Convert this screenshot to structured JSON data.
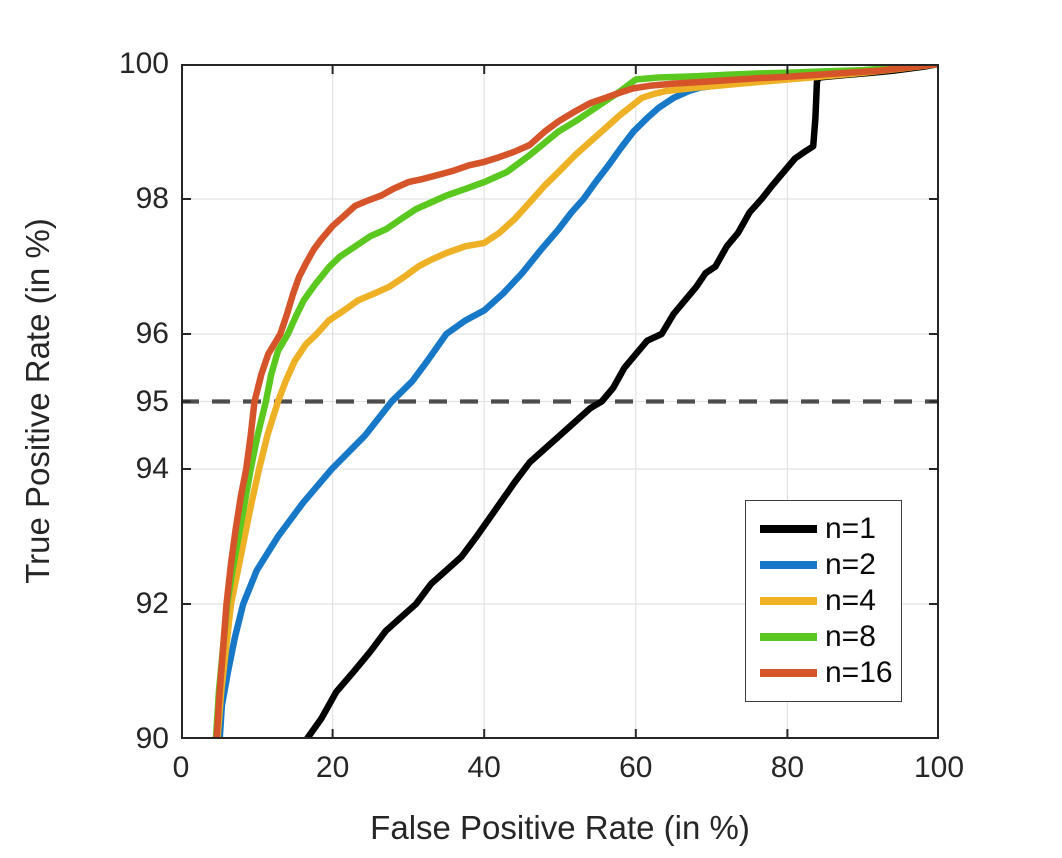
{
  "figure": {
    "background": "#ffffff",
    "axis_color": "#262626",
    "grid_color": "#e2e2e2",
    "reference_line_color": "#4d4d4d"
  },
  "axes": {
    "xlabel": "False Positive Rate (in %)",
    "ylabel": "True Positive Rate (in %)",
    "x_tick_labels": [
      "0",
      "20",
      "40",
      "60",
      "80",
      "100"
    ],
    "y_tick_labels": [
      "90",
      "92",
      "94",
      "95",
      "96",
      "98",
      "100"
    ]
  },
  "legend": {
    "items": [
      {
        "label": "n=1",
        "color": "#000000"
      },
      {
        "label": "n=2",
        "color": "#1878c8"
      },
      {
        "label": "n=4",
        "color": "#eeb126"
      },
      {
        "label": "n=8",
        "color": "#5ac81e"
      },
      {
        "label": "n=16",
        "color": "#d5542a"
      }
    ]
  },
  "chart_data": {
    "type": "line",
    "title": "",
    "xlabel": "False Positive Rate (in %)",
    "ylabel": "True Positive Rate (in %)",
    "xlim": [
      0,
      100
    ],
    "ylim": [
      90,
      100
    ],
    "xticks": [
      0,
      20,
      40,
      60,
      80,
      100
    ],
    "yticks": [
      90,
      92,
      94,
      95,
      96,
      98,
      100
    ],
    "x_gridlines": [
      20,
      40,
      60,
      80
    ],
    "y_gridlines": [
      92,
      94,
      95,
      96,
      98
    ],
    "grid": true,
    "legend_position": "inside lower right",
    "reference_line": {
      "y": 95,
      "style": "dashed",
      "color": "#4d4d4d",
      "width": 4.3,
      "dash": "18 13"
    },
    "series": [
      {
        "name": "n=1",
        "color": "#000000",
        "width": 6.5,
        "points": [
          [
            16.6,
            90
          ],
          [
            18.5,
            90.3
          ],
          [
            20.5,
            90.7
          ],
          [
            22.8,
            91
          ],
          [
            25,
            91.3
          ],
          [
            27,
            91.6
          ],
          [
            29,
            91.8
          ],
          [
            31,
            92
          ],
          [
            33,
            92.3
          ],
          [
            35,
            92.5
          ],
          [
            37,
            92.7
          ],
          [
            39,
            93
          ],
          [
            41.5,
            93.4
          ],
          [
            44,
            93.8
          ],
          [
            46,
            94.1
          ],
          [
            48,
            94.3
          ],
          [
            50,
            94.5
          ],
          [
            52,
            94.7
          ],
          [
            54,
            94.9
          ],
          [
            55.5,
            95
          ],
          [
            57,
            95.2
          ],
          [
            58.5,
            95.5
          ],
          [
            60,
            95.7
          ],
          [
            61.5,
            95.9
          ],
          [
            63.4,
            96
          ],
          [
            65,
            96.3
          ],
          [
            66.5,
            96.5
          ],
          [
            68,
            96.7
          ],
          [
            69.2,
            96.9
          ],
          [
            70.5,
            97
          ],
          [
            72,
            97.3
          ],
          [
            73.5,
            97.5
          ],
          [
            75,
            97.8
          ],
          [
            76.6,
            98
          ],
          [
            78,
            98.2
          ],
          [
            79.5,
            98.4
          ],
          [
            81,
            98.6
          ],
          [
            82.3,
            98.7
          ],
          [
            83.4,
            98.78
          ],
          [
            83.7,
            99.2
          ],
          [
            83.9,
            99.75
          ],
          [
            84.2,
            99.8
          ],
          [
            86,
            99.82
          ],
          [
            88,
            99.84
          ],
          [
            90,
            99.86
          ],
          [
            92,
            99.88
          ],
          [
            94,
            99.9
          ],
          [
            96,
            99.93
          ],
          [
            98,
            99.96
          ],
          [
            100,
            100
          ]
        ]
      },
      {
        "name": "n=2",
        "color": "#1878c8",
        "width": 6.5,
        "points": [
          [
            5.1,
            90
          ],
          [
            5.4,
            90.5
          ],
          [
            6.2,
            91
          ],
          [
            7.1,
            91.5
          ],
          [
            8.2,
            92
          ],
          [
            10,
            92.5
          ],
          [
            12.8,
            93
          ],
          [
            16.1,
            93.5
          ],
          [
            19.9,
            94
          ],
          [
            24.3,
            94.5
          ],
          [
            27.8,
            95
          ],
          [
            30.5,
            95.3
          ],
          [
            32.5,
            95.6
          ],
          [
            35,
            96
          ],
          [
            37.5,
            96.2
          ],
          [
            40,
            96.35
          ],
          [
            42.5,
            96.6
          ],
          [
            45,
            96.9
          ],
          [
            47.5,
            97.25
          ],
          [
            49.8,
            97.55
          ],
          [
            51.5,
            97.8
          ],
          [
            53.1,
            98
          ],
          [
            54.7,
            98.25
          ],
          [
            56.4,
            98.5
          ],
          [
            58,
            98.75
          ],
          [
            59.7,
            99
          ],
          [
            61.5,
            99.2
          ],
          [
            63,
            99.35
          ],
          [
            65,
            99.5
          ],
          [
            67,
            99.6
          ],
          [
            68.5,
            99.65
          ],
          [
            72,
            99.7
          ],
          [
            76,
            99.74
          ],
          [
            80,
            99.78
          ],
          [
            84,
            99.82
          ],
          [
            87,
            99.87
          ],
          [
            90,
            99.9
          ],
          [
            94,
            99.94
          ],
          [
            97,
            99.97
          ],
          [
            100,
            100
          ]
        ]
      },
      {
        "name": "n=4",
        "color": "#eeb126",
        "width": 6.5,
        "points": [
          [
            4.8,
            90
          ],
          [
            5.3,
            90.7
          ],
          [
            5.9,
            91.3
          ],
          [
            6.6,
            92
          ],
          [
            7.5,
            92.5
          ],
          [
            8.4,
            93
          ],
          [
            9.3,
            93.5
          ],
          [
            10.3,
            94
          ],
          [
            11.4,
            94.5
          ],
          [
            12.8,
            95
          ],
          [
            13.8,
            95.3
          ],
          [
            15,
            95.6
          ],
          [
            16.5,
            95.85
          ],
          [
            17.9,
            96
          ],
          [
            19.5,
            96.2
          ],
          [
            21.5,
            96.35
          ],
          [
            23.4,
            96.5
          ],
          [
            25.5,
            96.6
          ],
          [
            27.5,
            96.7
          ],
          [
            29.5,
            96.85
          ],
          [
            31.3,
            97
          ],
          [
            33,
            97.1
          ],
          [
            35,
            97.2
          ],
          [
            37.5,
            97.3
          ],
          [
            40,
            97.35
          ],
          [
            42,
            97.5
          ],
          [
            44,
            97.7
          ],
          [
            46,
            97.95
          ],
          [
            48,
            98.2
          ],
          [
            49.8,
            98.4
          ],
          [
            52,
            98.65
          ],
          [
            54,
            98.85
          ],
          [
            56,
            99.05
          ],
          [
            58,
            99.25
          ],
          [
            60.8,
            99.5
          ],
          [
            62.5,
            99.56
          ],
          [
            64,
            99.6
          ],
          [
            68,
            99.65
          ],
          [
            72,
            99.69
          ],
          [
            76,
            99.73
          ],
          [
            80,
            99.77
          ],
          [
            85,
            99.82
          ],
          [
            90,
            99.87
          ],
          [
            95,
            99.93
          ],
          [
            100,
            100
          ]
        ]
      },
      {
        "name": "n=8",
        "color": "#5ac81e",
        "width": 6.5,
        "points": [
          [
            4.6,
            90
          ],
          [
            5,
            90.7
          ],
          [
            5.5,
            91.3
          ],
          [
            6.1,
            92
          ],
          [
            6.8,
            92.5
          ],
          [
            7.6,
            93
          ],
          [
            8.4,
            93.5
          ],
          [
            9.2,
            94
          ],
          [
            10.1,
            94.5
          ],
          [
            11.2,
            95
          ],
          [
            11.9,
            95.4
          ],
          [
            12.8,
            95.75
          ],
          [
            14.1,
            96
          ],
          [
            15.1,
            96.25
          ],
          [
            16.2,
            96.5
          ],
          [
            17.8,
            96.75
          ],
          [
            19.6,
            97
          ],
          [
            21,
            97.15
          ],
          [
            23,
            97.3
          ],
          [
            25,
            97.45
          ],
          [
            27,
            97.55
          ],
          [
            29,
            97.7
          ],
          [
            31,
            97.85
          ],
          [
            33,
            97.95
          ],
          [
            35,
            98.05
          ],
          [
            37.5,
            98.15
          ],
          [
            40,
            98.25
          ],
          [
            43,
            98.4
          ],
          [
            46,
            98.65
          ],
          [
            49.8,
            99
          ],
          [
            52,
            99.15
          ],
          [
            54,
            99.3
          ],
          [
            56,
            99.45
          ],
          [
            58,
            99.6
          ],
          [
            60,
            99.77
          ],
          [
            63,
            99.8
          ],
          [
            68,
            99.82
          ],
          [
            72,
            99.84
          ],
          [
            76,
            99.86
          ],
          [
            80,
            99.87
          ],
          [
            85,
            99.89
          ],
          [
            90,
            99.91
          ],
          [
            95,
            99.95
          ],
          [
            100,
            100
          ]
        ]
      },
      {
        "name": "n=16",
        "color": "#d5542a",
        "width": 6.5,
        "points": [
          [
            4.7,
            90
          ],
          [
            5.1,
            90.7
          ],
          [
            5.6,
            91.4
          ],
          [
            6,
            92
          ],
          [
            6.6,
            92.6
          ],
          [
            7.2,
            93.1
          ],
          [
            7.9,
            93.6
          ],
          [
            8.6,
            94
          ],
          [
            9.2,
            94.5
          ],
          [
            9.7,
            95
          ],
          [
            10.6,
            95.4
          ],
          [
            11.5,
            95.7
          ],
          [
            13.1,
            96
          ],
          [
            14,
            96.3
          ],
          [
            14.8,
            96.6
          ],
          [
            15.6,
            96.85
          ],
          [
            16.5,
            97.05
          ],
          [
            17.5,
            97.25
          ],
          [
            18.5,
            97.4
          ],
          [
            20,
            97.6
          ],
          [
            21.5,
            97.75
          ],
          [
            23,
            97.9
          ],
          [
            24.5,
            97.97
          ],
          [
            26.4,
            98.05
          ],
          [
            28,
            98.15
          ],
          [
            30,
            98.25
          ],
          [
            32,
            98.3
          ],
          [
            34,
            98.36
          ],
          [
            36,
            98.42
          ],
          [
            38,
            98.5
          ],
          [
            40,
            98.55
          ],
          [
            42,
            98.62
          ],
          [
            44,
            98.7
          ],
          [
            46,
            98.8
          ],
          [
            48,
            99
          ],
          [
            49.8,
            99.15
          ],
          [
            52,
            99.3
          ],
          [
            54,
            99.42
          ],
          [
            56,
            99.5
          ],
          [
            58,
            99.58
          ],
          [
            59.7,
            99.64
          ],
          [
            62,
            99.68
          ],
          [
            65,
            99.71
          ],
          [
            68,
            99.73
          ],
          [
            72,
            99.76
          ],
          [
            76,
            99.79
          ],
          [
            80,
            99.81
          ],
          [
            84,
            99.84
          ],
          [
            88,
            99.87
          ],
          [
            92,
            99.9
          ],
          [
            96,
            99.95
          ],
          [
            100,
            100
          ]
        ]
      }
    ]
  }
}
